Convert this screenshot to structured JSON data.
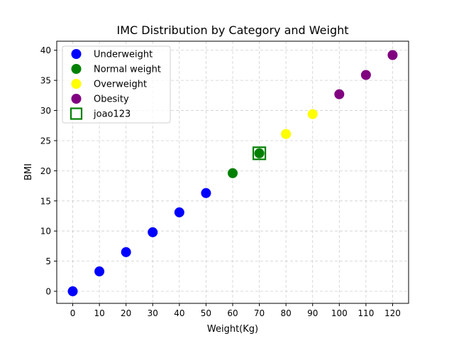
{
  "chart_data": {
    "type": "scatter",
    "title": "IMC Distribution by Category and Weight",
    "xlabel": "Weight(Kg)",
    "ylabel": "BMI",
    "xlim": [
      -6,
      126
    ],
    "ylim": [
      -2,
      41.5
    ],
    "xticks": [
      0,
      10,
      20,
      30,
      40,
      50,
      60,
      70,
      80,
      90,
      100,
      110,
      120
    ],
    "yticks": [
      0,
      5,
      10,
      15,
      20,
      25,
      30,
      35,
      40
    ],
    "grid": true,
    "legend_position": "top-left",
    "series": [
      {
        "name": "Underweight",
        "color": "#0000ff",
        "marker": "circle",
        "x": [
          0,
          10,
          20,
          30,
          40,
          50
        ],
        "y": [
          0.0,
          3.3,
          6.5,
          9.8,
          13.1,
          16.3
        ]
      },
      {
        "name": "Normal weight",
        "color": "#008000",
        "marker": "circle",
        "x": [
          60,
          70
        ],
        "y": [
          19.6,
          22.9
        ]
      },
      {
        "name": "Overweight",
        "color": "#ffff00",
        "marker": "circle",
        "x": [
          80,
          90
        ],
        "y": [
          26.1,
          29.4
        ]
      },
      {
        "name": "Obesity",
        "color": "#800080",
        "marker": "circle",
        "x": [
          100,
          110,
          120
        ],
        "y": [
          32.7,
          35.9,
          39.2
        ]
      },
      {
        "name": "joao123",
        "color": "#008000",
        "marker": "square-open",
        "x": [
          70
        ],
        "y": [
          22.9
        ]
      }
    ]
  }
}
